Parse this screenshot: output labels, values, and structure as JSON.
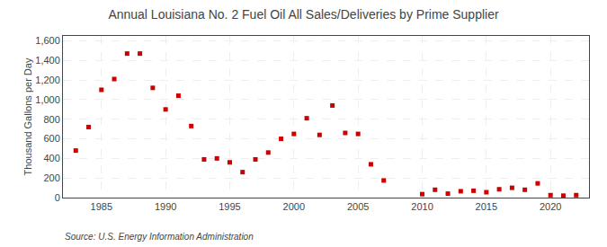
{
  "chart_data": {
    "type": "scatter",
    "title": "Annual Louisiana No. 2 Fuel Oil All Sales/Deliveries by Prime Supplier",
    "ylabel": "Thousand Gallons per Day",
    "annotations": [
      "Source: U.S. Energy Information Administration"
    ],
    "x": [
      1983,
      1984,
      1985,
      1986,
      1987,
      1988,
      1989,
      1990,
      1991,
      1992,
      1993,
      1994,
      1995,
      1996,
      1997,
      1998,
      1999,
      2000,
      2001,
      2002,
      2003,
      2004,
      2005,
      2006,
      2007,
      2010,
      2011,
      2012,
      2013,
      2014,
      2015,
      2016,
      2017,
      2018,
      2019,
      2020,
      2021,
      2022
    ],
    "values": [
      480,
      720,
      1100,
      1210,
      1470,
      1470,
      1120,
      900,
      1040,
      730,
      390,
      400,
      360,
      260,
      390,
      460,
      600,
      650,
      810,
      640,
      940,
      660,
      650,
      340,
      175,
      35,
      80,
      40,
      65,
      70,
      55,
      85,
      100,
      80,
      145,
      25,
      20,
      25
    ],
    "color": "#cc0000",
    "marker": "square",
    "xlim": [
      1982,
      2023
    ],
    "xticks": [
      1985,
      1990,
      1995,
      2000,
      2005,
      2010,
      2015,
      2020
    ],
    "ylim": [
      0,
      1650
    ],
    "yticks": [
      0,
      200,
      400,
      600,
      800,
      {
        "value": 1000,
        "label": "1,000"
      },
      {
        "value": 1200,
        "label": "1,200"
      },
      {
        "value": 1400,
        "label": "1,400"
      },
      {
        "value": 1600,
        "label": "1,600"
      }
    ],
    "grid": true
  }
}
